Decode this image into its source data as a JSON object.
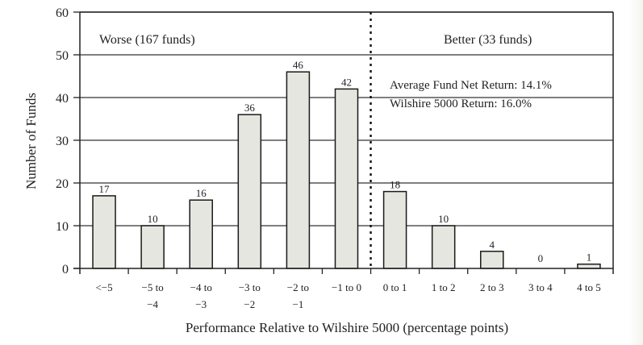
{
  "chart_data": {
    "type": "bar",
    "title": "",
    "xlabel": "Performance Relative to Wilshire 5000 (percentage points)",
    "ylabel": "Number of Funds",
    "ylim": [
      0,
      60
    ],
    "yticks": [
      0,
      10,
      20,
      30,
      40,
      50,
      60
    ],
    "grid": true,
    "categories": [
      [
        "<−5"
      ],
      [
        "−5 to",
        "−4"
      ],
      [
        "−4 to",
        "−3"
      ],
      [
        "−3 to",
        "−2"
      ],
      [
        "−2 to",
        "−1"
      ],
      [
        "−1 to 0"
      ],
      [
        "0 to 1"
      ],
      [
        "1 to 2"
      ],
      [
        "2 to 3"
      ],
      [
        "3 to 4"
      ],
      [
        "4 to 5"
      ]
    ],
    "values": [
      17,
      10,
      16,
      36,
      46,
      42,
      18,
      10,
      4,
      0,
      1
    ],
    "divider_after_index": 5,
    "annotations": {
      "worse": "Worse (167 funds)",
      "better": "Better (33 funds)",
      "avg_return": "Average Fund Net Return: 14.1%",
      "wilshire_return": "Wilshire 5000 Return: 16.0%"
    },
    "colors": {
      "bar_fill": "#e6e6e0",
      "bar_stroke": "#1a1a1a",
      "grid": "#333333"
    }
  }
}
